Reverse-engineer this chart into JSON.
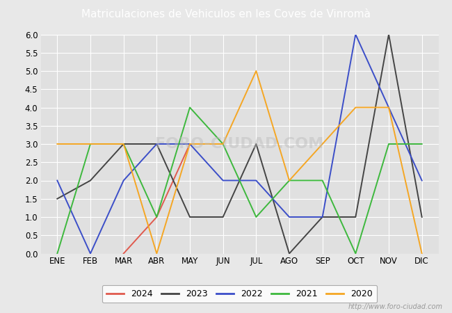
{
  "title": "Matriculaciones de Vehiculos en les Coves de Vinromà",
  "months": [
    "ENE",
    "FEB",
    "MAR",
    "ABR",
    "MAY",
    "JUN",
    "JUL",
    "AGO",
    "SEP",
    "OCT",
    "NOV",
    "DIC"
  ],
  "series": {
    "2024": {
      "color": "#e05a4e",
      "values": [
        null,
        null,
        0,
        1,
        3,
        null,
        null,
        null,
        null,
        null,
        null,
        null
      ]
    },
    "2023": {
      "color": "#444444",
      "values": [
        1.5,
        2,
        3,
        3,
        1,
        1,
        3,
        0,
        1,
        1,
        6,
        1
      ]
    },
    "2022": {
      "color": "#3b4ec8",
      "values": [
        2,
        0,
        2,
        3,
        3,
        2,
        2,
        1,
        1,
        6,
        4,
        2
      ]
    },
    "2021": {
      "color": "#3db83d",
      "values": [
        0,
        3,
        3,
        1,
        4,
        3,
        1,
        2,
        2,
        0,
        3,
        3
      ]
    },
    "2020": {
      "color": "#f5a623",
      "values": [
        3,
        3,
        3,
        0,
        3,
        3,
        5,
        2,
        3,
        4,
        4,
        0
      ]
    }
  },
  "ylim": [
    0,
    6.0
  ],
  "yticks": [
    0.0,
    0.5,
    1.0,
    1.5,
    2.0,
    2.5,
    3.0,
    3.5,
    4.0,
    4.5,
    5.0,
    5.5,
    6.0
  ],
  "outer_bg": "#e8e8e8",
  "plot_bg_color": "#e0e0e0",
  "title_bg_color": "#5b9bd5",
  "title_color": "#ffffff",
  "title_fontsize": 11,
  "watermark_text": "http://www.foro-ciudad.com",
  "watermark_chart": "FORO-CIUDAD.COM",
  "legend_years": [
    "2024",
    "2023",
    "2022",
    "2021",
    "2020"
  ]
}
